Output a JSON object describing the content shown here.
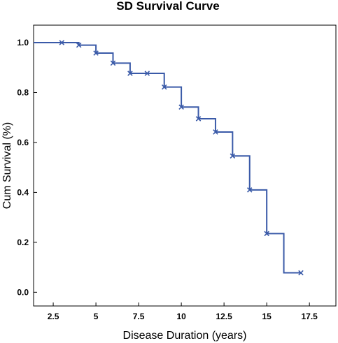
{
  "chart_data": {
    "type": "line",
    "title": "SD Survival Curve",
    "xlabel": "Disease Duration (years)",
    "ylabel": "Cum Survival (%)",
    "xlim": [
      1.35,
      19.05
    ],
    "ylim": [
      -0.055,
      1.07
    ],
    "xticks": [
      {
        "value": 2.5,
        "label": "2.5"
      },
      {
        "value": 5,
        "label": "5"
      },
      {
        "value": 7.5,
        "label": "7.5"
      },
      {
        "value": 10,
        "label": "10"
      },
      {
        "value": 12.5,
        "label": "12.5"
      },
      {
        "value": 15,
        "label": "15"
      },
      {
        "value": 17.5,
        "label": "17.5"
      }
    ],
    "yticks": [
      {
        "value": 0.0,
        "label": "0.0"
      },
      {
        "value": 0.2,
        "label": "0.2"
      },
      {
        "value": 0.4,
        "label": "0.4"
      },
      {
        "value": 0.6,
        "label": "0.6"
      },
      {
        "value": 0.8,
        "label": "0.8"
      },
      {
        "value": 1.0,
        "label": "1.0"
      }
    ],
    "grid": false,
    "line_color": "#3a5aa8",
    "step": [
      {
        "x": 1.35,
        "y": 1.0
      },
      {
        "x": 4,
        "y": 0.99
      },
      {
        "x": 5,
        "y": 0.958
      },
      {
        "x": 6,
        "y": 0.918
      },
      {
        "x": 7,
        "y": 0.877
      },
      {
        "x": 9,
        "y": 0.822
      },
      {
        "x": 10,
        "y": 0.742
      },
      {
        "x": 11,
        "y": 0.695
      },
      {
        "x": 12,
        "y": 0.642
      },
      {
        "x": 13,
        "y": 0.546
      },
      {
        "x": 14,
        "y": 0.41
      },
      {
        "x": 15,
        "y": 0.235
      },
      {
        "x": 16,
        "y": 0.078
      },
      {
        "x": 17,
        "y": 0.078
      }
    ],
    "censored": [
      {
        "x": 3,
        "y": 1.0
      },
      {
        "x": 4,
        "y": 0.99
      },
      {
        "x": 5,
        "y": 0.958
      },
      {
        "x": 6,
        "y": 0.918
      },
      {
        "x": 7,
        "y": 0.877
      },
      {
        "x": 8,
        "y": 0.877
      },
      {
        "x": 9,
        "y": 0.822
      },
      {
        "x": 10,
        "y": 0.742
      },
      {
        "x": 11,
        "y": 0.695
      },
      {
        "x": 12,
        "y": 0.642
      },
      {
        "x": 13,
        "y": 0.546
      },
      {
        "x": 14,
        "y": 0.41
      },
      {
        "x": 15,
        "y": 0.235
      },
      {
        "x": 17,
        "y": 0.078
      }
    ]
  }
}
